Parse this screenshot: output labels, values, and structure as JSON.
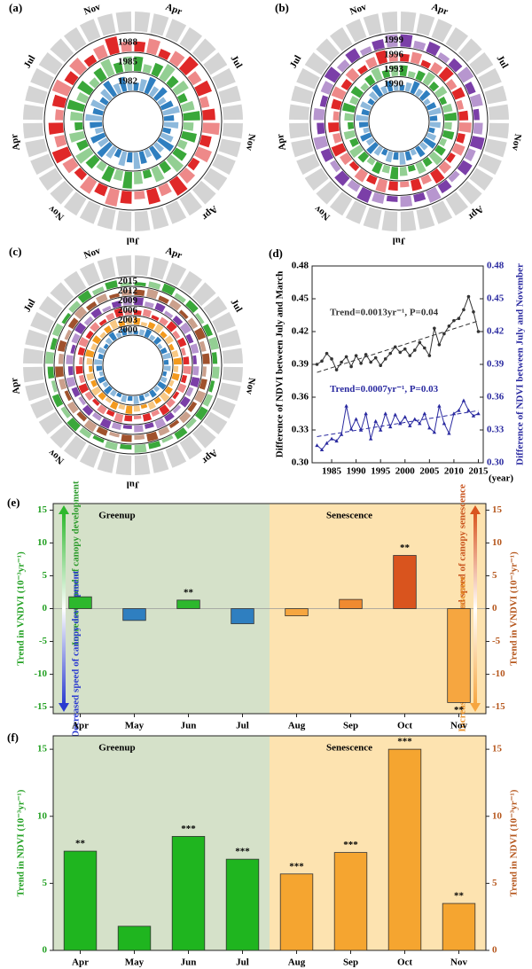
{
  "chart_data": [
    {
      "type": "radial",
      "label": "(a)",
      "rings": [
        {
          "year": "1982",
          "color": "#2f7fc0"
        },
        {
          "year": "1985",
          "color": "#3aa83a"
        },
        {
          "year": "1988",
          "color": "#e02828"
        }
      ],
      "months": [
        "Nov",
        "Apr",
        "Jul",
        "Nov",
        "Apr",
        "Jul",
        "Nov",
        "Apr",
        "Jul"
      ]
    },
    {
      "type": "radial",
      "label": "(b)",
      "rings": [
        {
          "year": "1990",
          "color": "#2f7fc0"
        },
        {
          "year": "1993",
          "color": "#3aa83a"
        },
        {
          "year": "1996",
          "color": "#e02828"
        },
        {
          "year": "1999",
          "color": "#7b3fa8"
        }
      ],
      "months": [
        "Nov",
        "Apr",
        "Jul",
        "Nov",
        "Apr",
        "Jul",
        "Nov",
        "Apr",
        "Jul"
      ]
    },
    {
      "type": "radial",
      "label": "(c)",
      "rings": [
        {
          "year": "2000",
          "color": "#2f7fc0"
        },
        {
          "year": "2003",
          "color": "#f39a1e"
        },
        {
          "year": "2006",
          "color": "#e02828"
        },
        {
          "year": "2009",
          "color": "#7b3fa8"
        },
        {
          "year": "2012",
          "color": "#a0522d"
        },
        {
          "year": "2015",
          "color": "#3aa83a"
        }
      ],
      "months": [
        "Nov",
        "Apr",
        "Jul",
        "Nov",
        "Apr",
        "Jul",
        "Nov",
        "Apr",
        "Jul"
      ]
    },
    {
      "type": "line",
      "label": "(d)",
      "x_label": "(year)",
      "y_label": "Difference of NDVI between July and March",
      "y2_label": "Difference of NDVI between July and November",
      "x": [
        1982,
        1983,
        1984,
        1985,
        1986,
        1987,
        1988,
        1989,
        1990,
        1991,
        1992,
        1993,
        1994,
        1995,
        1996,
        1997,
        1998,
        1999,
        2000,
        2001,
        2002,
        2003,
        2004,
        2005,
        2006,
        2007,
        2008,
        2009,
        2010,
        2011,
        2012,
        2013,
        2014,
        2015
      ],
      "xlim": [
        1981,
        2016
      ],
      "xticks": [
        1985,
        1990,
        1995,
        2000,
        2005,
        2010,
        2015
      ],
      "ylim": [
        0.3,
        0.48
      ],
      "yticks": [
        {
          "value": 0.3,
          "label": "0.30"
        },
        0.33,
        0.36,
        0.39,
        0.42,
        0.45,
        0.48
      ],
      "y2lim": [
        0.3,
        0.48
      ],
      "y2ticks": [
        {
          "value": 0.3,
          "label": "0.30"
        },
        0.33,
        0.36,
        0.39,
        0.42,
        0.45,
        0.48
      ],
      "series": [
        {
          "color": "#333333",
          "values": [
            0.39,
            0.393,
            0.4,
            0.395,
            0.385,
            0.392,
            0.397,
            0.388,
            0.398,
            0.391,
            0.399,
            0.392,
            0.396,
            0.389,
            0.395,
            0.4,
            0.406,
            0.401,
            0.404,
            0.398,
            0.403,
            0.41,
            0.405,
            0.398,
            0.423,
            0.408,
            0.418,
            0.425,
            0.43,
            0.432,
            0.44,
            0.452,
            0.438,
            0.42
          ]
        },
        {
          "color": "#2a2aa0",
          "axis": "y2",
          "values": [
            0.316,
            0.312,
            0.318,
            0.322,
            0.32,
            0.326,
            0.352,
            0.331,
            0.34,
            0.33,
            0.345,
            0.322,
            0.338,
            0.33,
            0.345,
            0.333,
            0.344,
            0.336,
            0.342,
            0.334,
            0.34,
            0.336,
            0.345,
            0.332,
            0.328,
            0.352,
            0.336,
            0.327,
            0.345,
            0.348,
            0.357,
            0.348,
            0.343,
            0.345
          ]
        }
      ],
      "annotations": [
        "Trend=0.0013yr⁻¹, P=0.04",
        "Trend=0.0007yr⁻¹, P=0.03"
      ]
    },
    {
      "type": "bar",
      "label": "(e)",
      "categories": [
        "Apr",
        "May",
        "Jun",
        "Jul",
        "Aug",
        "Sep",
        "Oct",
        "Nov"
      ],
      "values": [
        1.8,
        -1.8,
        1.3,
        -2.3,
        -1.1,
        1.4,
        8.1,
        -14.3
      ],
      "colors": [
        "#2db82d",
        "#2f7fc0",
        "#2db82d",
        "#2f7fc0",
        "#f6a640",
        "#f08a30",
        "#d9541e",
        "#f6a640"
      ],
      "significance": [
        null,
        null,
        "**",
        null,
        null,
        null,
        "**",
        "**"
      ],
      "ylim": [
        -16,
        16
      ],
      "yticks": [
        -15,
        -10,
        -5,
        0,
        5,
        10,
        15
      ],
      "y_label": "Trend in VNDVI (10⁻³yr⁻¹)",
      "regions": [
        {
          "label": "Greenup",
          "color": "#d5e1c9"
        },
        {
          "label": "Senescence",
          "color": "#fde3b0"
        }
      ],
      "arrow_labels": [
        "Increased speed of canopy development",
        "Decreased speed of canopy development",
        "Decreased speed of canopy senescence",
        "Increased speed of canopy senescence"
      ]
    },
    {
      "type": "bar",
      "label": "(f)",
      "categories": [
        "Apr",
        "May",
        "Jun",
        "Jul",
        "Aug",
        "Sep",
        "Oct",
        "Nov"
      ],
      "values": [
        7.4,
        1.8,
        8.5,
        6.8,
        5.7,
        7.3,
        15,
        3.5
      ],
      "colors": [
        "#1fb51f",
        "#1fb51f",
        "#1fb51f",
        "#1fb51f",
        "#f5a530",
        "#f5a530",
        "#f5a530",
        "#f5a530"
      ],
      "significance": [
        "**",
        null,
        "***",
        "***",
        "***",
        "***",
        "***",
        "**"
      ],
      "ylim": [
        0,
        16
      ],
      "yticks": [
        0,
        5,
        10,
        15
      ],
      "y_label": "Trend in NDVI (10⁻³yr⁻¹)",
      "regions": [
        {
          "label": "Greenup",
          "color": "#d5e1c9"
        },
        {
          "label": "Senescence",
          "color": "#fde3b0"
        }
      ]
    }
  ]
}
